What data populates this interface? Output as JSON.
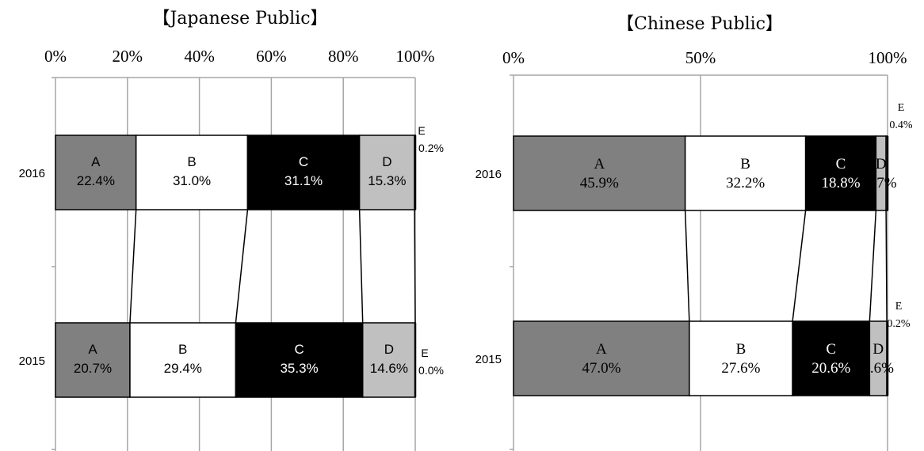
{
  "colors": {
    "A": "#808080",
    "B": "#ffffff",
    "C": "#000000",
    "D": "#c0c0c0",
    "E": "#ffffff",
    "grid": "#a6a6a6"
  },
  "chart_data": [
    {
      "type": "bar",
      "stacked": true,
      "orientation": "horizontal",
      "title": "【Japanese Public】",
      "categories": [
        "2016",
        "2015"
      ],
      "xlim": [
        0,
        100
      ],
      "xticks": [
        "0%",
        "20%",
        "40%",
        "60%",
        "80%",
        "100%"
      ],
      "grid": true,
      "series": [
        {
          "name": "A",
          "values": [
            22.4,
            20.7
          ],
          "labels": [
            "22.4%",
            "20.7%"
          ]
        },
        {
          "name": "B",
          "values": [
            31.0,
            29.4
          ],
          "labels": [
            "31.0%",
            "29.4%"
          ]
        },
        {
          "name": "C",
          "values": [
            31.1,
            35.3
          ],
          "labels": [
            "31.1%",
            "35.3%"
          ]
        },
        {
          "name": "D",
          "values": [
            15.3,
            14.6
          ],
          "labels": [
            "15.3%",
            "14.6%"
          ]
        },
        {
          "name": "E",
          "values": [
            0.2,
            0.0
          ],
          "labels": [
            "0.2%",
            "0.0%"
          ]
        }
      ]
    },
    {
      "type": "bar",
      "stacked": true,
      "orientation": "horizontal",
      "title": "【Chinese Public】",
      "categories": [
        "2016",
        "2015"
      ],
      "xlim": [
        0,
        100
      ],
      "xticks": [
        "0%",
        "50%",
        "100%"
      ],
      "grid": true,
      "series": [
        {
          "name": "A",
          "values": [
            45.9,
            47.0
          ],
          "labels": [
            "45.9%",
            "47.0%"
          ]
        },
        {
          "name": "B",
          "values": [
            32.2,
            27.6
          ],
          "labels": [
            "32.2%",
            "27.6%"
          ]
        },
        {
          "name": "C",
          "values": [
            18.8,
            20.6
          ],
          "labels": [
            "18.8%",
            "20.6%"
          ]
        },
        {
          "name": "D",
          "values": [
            2.7,
            4.6
          ],
          "labels": [
            "2.7%",
            "4.6%"
          ]
        },
        {
          "name": "E",
          "values": [
            0.4,
            0.2
          ],
          "labels": [
            "0.4%",
            "0.2%"
          ]
        }
      ]
    }
  ]
}
